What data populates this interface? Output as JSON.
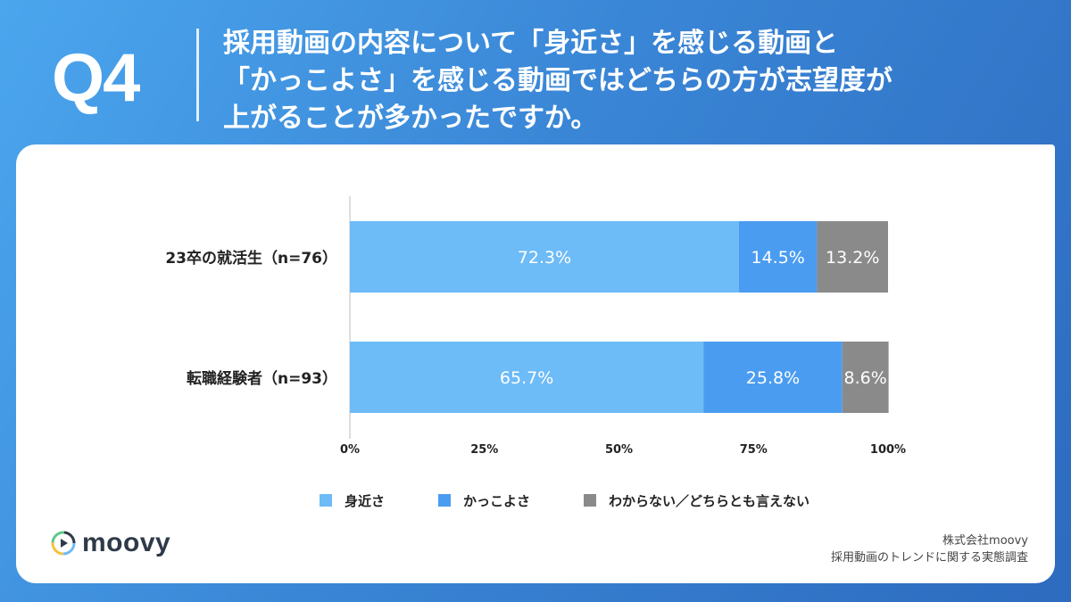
{
  "header": {
    "question_number": "Q4",
    "title_lines": [
      "採用動画の内容について「身近さ」を感じる動画と",
      "「かっこよさ」を感じる動画ではどちらの方が志望度が",
      "上がることが多かったですか。"
    ]
  },
  "footer": {
    "logo_text": "moovy",
    "credit_lines": [
      "株式会社moovy",
      "採用動画のトレンドに関する実態調査"
    ]
  },
  "colors": {
    "series": [
      "#6dbbf7",
      "#4a9cf0",
      "#8a8a8a"
    ]
  },
  "chart_data": {
    "type": "bar",
    "orientation": "horizontal",
    "stacked": true,
    "categories": [
      "23卒の就活生（n=76）",
      "転職経験者（n=93）"
    ],
    "series": [
      {
        "name": "身近さ",
        "values": [
          72.3,
          65.7
        ]
      },
      {
        "name": "かっこよさ",
        "values": [
          14.5,
          25.8
        ]
      },
      {
        "name": "わからない／どちらとも言えない",
        "values": [
          13.2,
          8.6
        ]
      }
    ],
    "value_labels": [
      [
        "72.3%",
        "65.7%"
      ],
      [
        "14.5%",
        "25.8%"
      ],
      [
        "13.2%",
        "8.6%"
      ]
    ],
    "xlim": [
      0,
      100
    ],
    "xticks": [
      "0%",
      "25%",
      "50%",
      "75%",
      "100%"
    ],
    "grid": false,
    "legend_position": "bottom"
  }
}
